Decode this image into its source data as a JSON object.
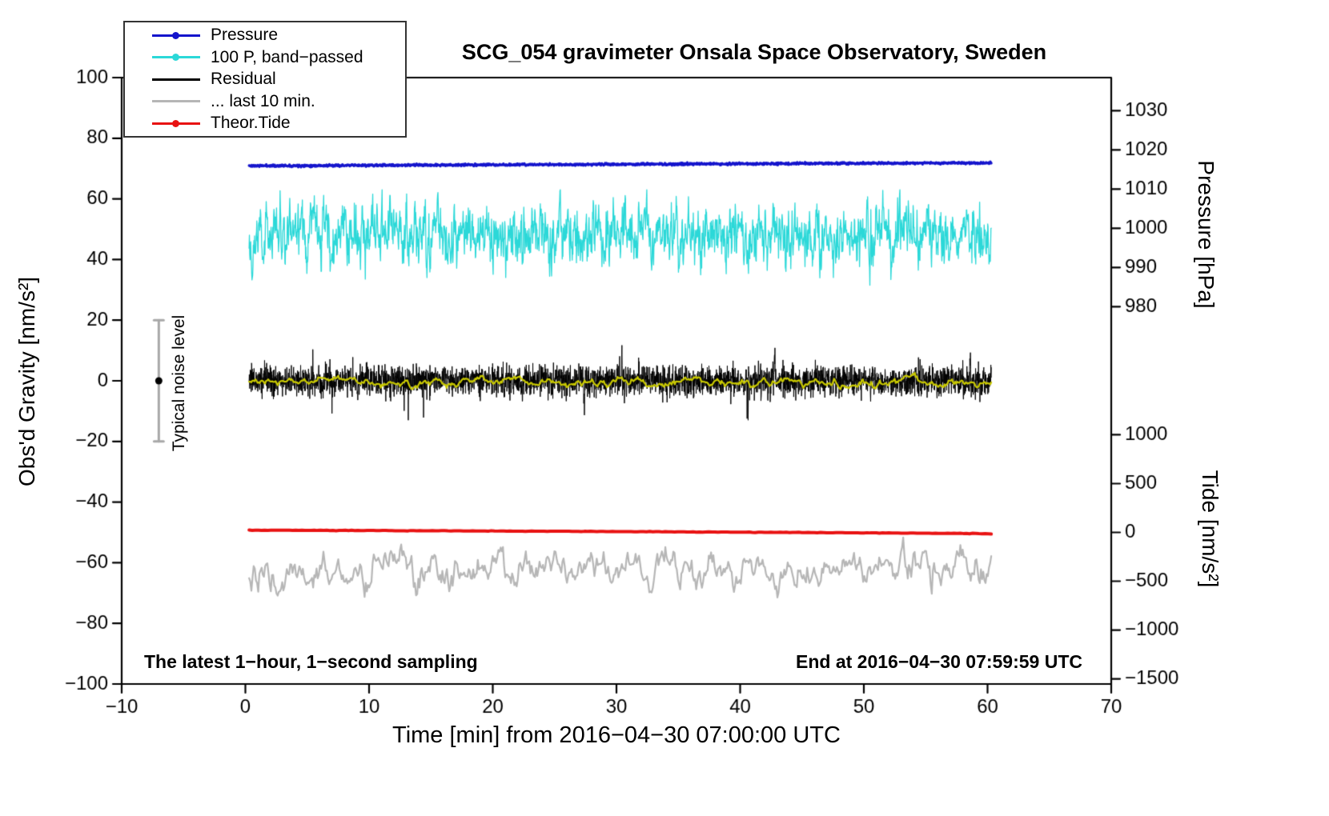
{
  "chart_data": {
    "type": "line",
    "title": "SCG_054 gravimeter Onsala Space Observatory, Sweden",
    "xlabel": "Time [min] from 2016−04−30 07:00:00 UTC",
    "ylabel_left": "Obs'd Gravity [nm/s²]",
    "ylabel_right_top": "Pressure [hPa]",
    "ylabel_right_bottom": "Tide [nm/s²]",
    "xlim": [
      -10,
      70
    ],
    "ylim_left": [
      -100,
      100
    ],
    "x_ticks": [
      -10,
      0,
      10,
      20,
      30,
      40,
      50,
      60,
      70
    ],
    "y_ticks_left": [
      -100,
      -80,
      -60,
      -40,
      -20,
      0,
      20,
      40,
      60,
      80,
      100
    ],
    "grid": false,
    "legend_position": "top-left",
    "pressure_axis": {
      "ticks": [
        1030,
        1020,
        1010,
        1000,
        990,
        980
      ],
      "gravity_slope": 1.293,
      "gravity_intercept": -1242.7
    },
    "tide_axis": {
      "ticks": [
        1000,
        500,
        0,
        -500,
        -1000,
        -1500
      ],
      "gravity_slope": 0.0322,
      "gravity_intercept": -50
    },
    "noise_bar": {
      "x": -7,
      "y_center": 0,
      "half_range": 20,
      "label": "Typical noise level"
    },
    "annotations": {
      "sampling_note": "The latest 1−hour, 1−second sampling",
      "end_note": "End at 2016−04−30 07:59:59 UTC"
    },
    "legend": [
      {
        "label": "Pressure",
        "color": "#1414cc",
        "marker": true
      },
      {
        "label": "100 P, band−passed",
        "color": "#2bd8d8",
        "marker": true
      },
      {
        "label": "Residual",
        "color": "#000000",
        "marker": false
      },
      {
        "label": "... last 10 min.",
        "color": "#b6b6b6",
        "marker": false
      },
      {
        "label": "Theor.Tide",
        "color": "#e81212",
        "marker": true
      }
    ],
    "series": [
      {
        "name": "100 P, band−passed",
        "color": "#2bd8d8",
        "width": 1.3,
        "axis": "left",
        "gen": {
          "type": "ar1",
          "seed": 22,
          "n": 2300,
          "x0": 0.3,
          "x1": 60.3,
          "mean": 48.5,
          "phi": 0.63,
          "sigma": 3.9,
          "clamp": [
            28,
            63
          ]
        }
      },
      {
        "name": "Pressure",
        "color": "#1414cc",
        "width": 3.2,
        "axis": "pressure",
        "approx_hpa_range": [
          1015.9,
          1016.7
        ],
        "gen": {
          "type": "trend",
          "seed": 11,
          "n": 1600,
          "x0": 0.3,
          "x1": 60.3,
          "y0": 70.9,
          "y1": 71.9,
          "noise": 0.17
        }
      },
      {
        "name": "Residual",
        "color": "#000000",
        "width": 1,
        "axis": "left",
        "gen": {
          "type": "spiky",
          "seed": 33,
          "n": 3600,
          "x0": 0.3,
          "x1": 60.3,
          "mean": 0,
          "sigma": 2.5,
          "spike_p": 0.004,
          "spike_amp": 9,
          "clamp": [
            -13,
            16
          ],
          "spikes": [
            {
              "x": 58.6,
              "dy": 9
            },
            {
              "x": 42.8,
              "dy": 7
            },
            {
              "x": 27.4,
              "dy": -6
            }
          ]
        }
      },
      {
        "name": "Residual smoothed",
        "color": "#c9c900",
        "width": 2.2,
        "axis": "left",
        "gen": {
          "type": "ar1",
          "seed": 44,
          "n": 700,
          "x0": 0.3,
          "x1": 60.3,
          "mean": -0.2,
          "phi": 0.9,
          "sigma": 0.45,
          "clamp": [
            -3.2,
            2.8
          ]
        }
      },
      {
        "name": "... last 10 min.",
        "color": "#b6b6b6",
        "width": 2.2,
        "axis": "left",
        "gen": {
          "type": "ar1",
          "seed": 66,
          "n": 650,
          "x0": 0.3,
          "x1": 60.3,
          "mean": -62,
          "phi": 0.78,
          "sigma": 2.0,
          "clamp": [
            -71.5,
            -54
          ],
          "spikes": [
            {
              "x": 53.2,
              "dy": 10.5
            },
            {
              "x": 13.8,
              "dy": -7
            }
          ]
        }
      },
      {
        "name": "Theor.Tide",
        "color": "#e81212",
        "width": 4,
        "axis": "tide",
        "approx_tide_range": [
          5,
          -15
        ],
        "gen": {
          "type": "quad",
          "seed": 55,
          "n": 240,
          "x0": 0.3,
          "x1": 60.3,
          "a": -49.25,
          "b": -0.012,
          "c": -0.00012,
          "noise": 0.04
        }
      }
    ]
  }
}
